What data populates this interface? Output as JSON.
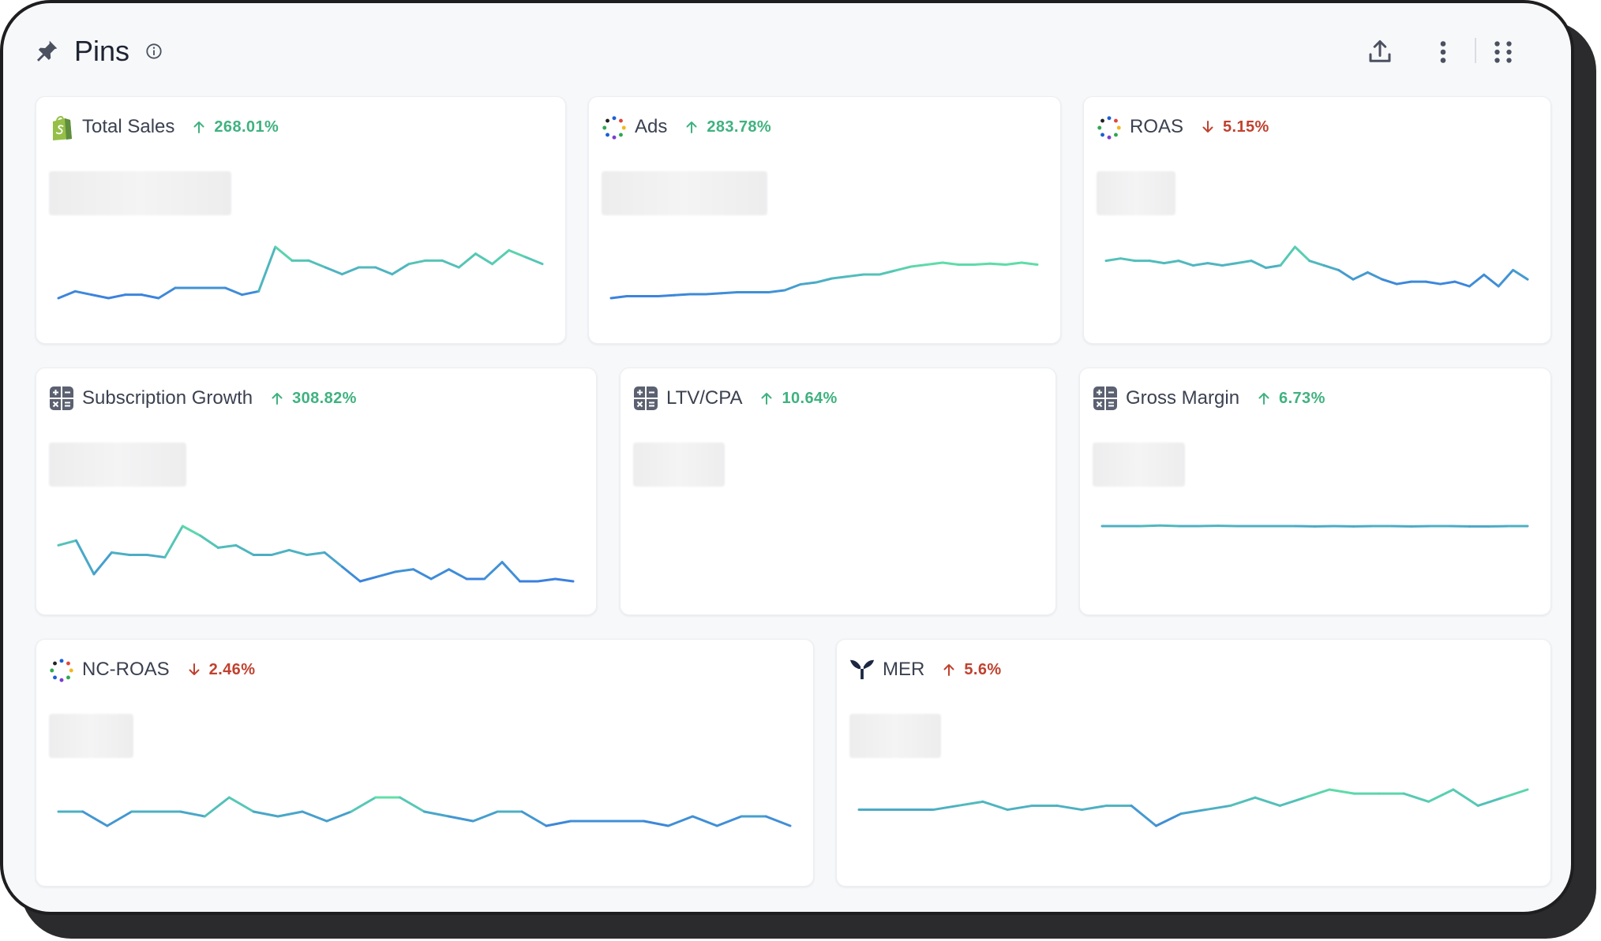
{
  "header": {
    "title": "Pins",
    "icons": [
      "pin-icon",
      "info-icon",
      "export-icon",
      "more-vertical-icon",
      "grid-dots-icon"
    ]
  },
  "colors": {
    "trend_up": "#3fb27f",
    "trend_down": "#c0412f",
    "line_blue": "#3a7fe0",
    "line_green": "#5fe0a6"
  },
  "cards": [
    {
      "title": "Total Sales",
      "icon": "shopify-icon",
      "direction": "up",
      "change": "268.01%",
      "series": [
        30,
        32,
        31,
        30,
        31,
        31,
        30,
        33,
        33,
        33,
        33,
        31,
        32,
        45,
        41,
        41,
        39,
        37,
        39,
        39,
        37,
        40,
        41,
        41,
        39,
        43,
        40,
        44,
        42,
        40
      ]
    },
    {
      "title": "Ads",
      "icon": "multi-dot-icon",
      "direction": "up",
      "change": "283.78%",
      "series": [
        10,
        11,
        11,
        11,
        11.5,
        12,
        12,
        12.5,
        13,
        13,
        13,
        14,
        17,
        18,
        20,
        21,
        22,
        22,
        24,
        26,
        27,
        28,
        27,
        27,
        27.5,
        27,
        28,
        27
      ]
    },
    {
      "title": "ROAS",
      "icon": "multi-dot-icon",
      "direction": "down",
      "change": "5.15%",
      "series": [
        42,
        43,
        42,
        42,
        41,
        42,
        40,
        41,
        40,
        41,
        42,
        39,
        40,
        48,
        42,
        40,
        38,
        34,
        37,
        34,
        32,
        33,
        33,
        32,
        33,
        31,
        36,
        31,
        38,
        34
      ]
    },
    {
      "title": "Subscription Growth",
      "icon": "calculator-icon",
      "direction": "up",
      "change": "308.82%",
      "series": [
        45,
        47,
        33,
        42,
        41,
        41,
        40,
        53,
        49,
        44,
        45,
        41,
        41,
        43,
        41,
        42,
        36,
        30,
        32,
        34,
        35,
        31,
        35,
        31,
        31,
        38,
        30,
        30,
        31,
        30
      ]
    },
    {
      "title": "LTV/CPA",
      "icon": "calculator-icon",
      "direction": "up",
      "change": "10.64%",
      "series": []
    },
    {
      "title": "Gross Margin",
      "icon": "calculator-icon",
      "direction": "up",
      "change": "6.73%",
      "series": [
        50,
        50,
        50,
        50.2,
        50,
        50,
        50.1,
        50,
        50,
        50,
        50,
        49.9,
        50,
        49.9,
        50,
        50,
        49.9,
        50,
        50,
        49.9,
        49.9,
        50,
        50
      ]
    },
    {
      "title": "NC-ROAS",
      "icon": "multi-dot-icon",
      "direction": "down",
      "change": "2.46%",
      "series": [
        40,
        40,
        37,
        40,
        40,
        40,
        39,
        43,
        40,
        39,
        40,
        38,
        40,
        43,
        43,
        40,
        39,
        38,
        40,
        40,
        37,
        38,
        38,
        38,
        38,
        37,
        39,
        37,
        39,
        39,
        37
      ]
    },
    {
      "title": "MER",
      "icon": "triple-whale-icon",
      "direction": "neg-up",
      "change": "5.6%",
      "series": [
        40,
        40,
        40,
        40,
        41,
        42,
        40,
        41,
        41,
        40,
        41,
        41,
        36,
        39,
        40,
        41,
        43,
        41,
        43,
        45,
        44,
        44,
        44,
        42,
        45,
        41,
        43,
        45
      ]
    }
  ]
}
